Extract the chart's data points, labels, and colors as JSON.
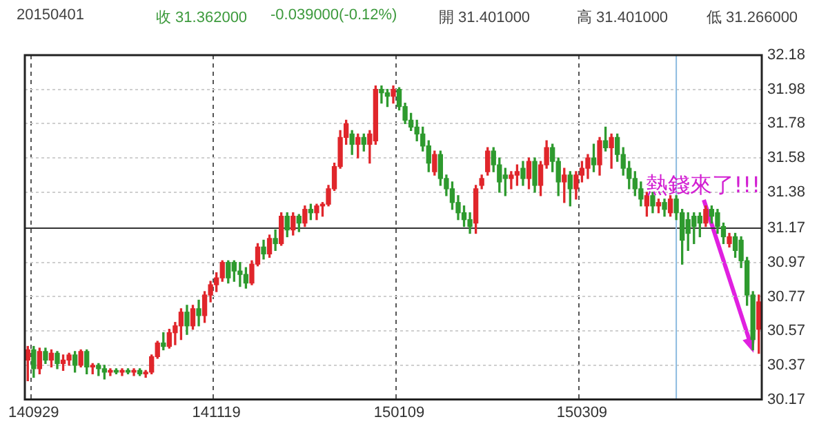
{
  "chart_data": {
    "type": "candlestick",
    "title": "20150401",
    "annotations": [
      "收 31.362000",
      "-0.039000(-0.12%)",
      "開 31.401000",
      "高 31.401000",
      "低 31.266000",
      {
        "text": "熱錢來了!!!",
        "y": 31.3
      }
    ],
    "categories": [
      null,
      "140929",
      null,
      null,
      null,
      null,
      null,
      null,
      null,
      null,
      null,
      null,
      null,
      null,
      null,
      null,
      null,
      null,
      null,
      null,
      null,
      null,
      null,
      null,
      null,
      null,
      null,
      null,
      null,
      null,
      null,
      null,
      "141119",
      null,
      null,
      null,
      null,
      null,
      null,
      null,
      null,
      null,
      null,
      null,
      null,
      null,
      null,
      null,
      null,
      null,
      null,
      null,
      null,
      null,
      null,
      null,
      null,
      null,
      null,
      null,
      null,
      null,
      null,
      "150109",
      null,
      null,
      null,
      null,
      null,
      null,
      null,
      null,
      null,
      null,
      null,
      null,
      null,
      null,
      null,
      null,
      null,
      null,
      null,
      null,
      null,
      null,
      null,
      null,
      null,
      null,
      null,
      null,
      null,
      null,
      "150309",
      null,
      null,
      null,
      null,
      null,
      null,
      null,
      null,
      null,
      null,
      null,
      null,
      null,
      null,
      null,
      null,
      null,
      null,
      null,
      null,
      null,
      null,
      null,
      null,
      null,
      null,
      null,
      null,
      null,
      null
    ],
    "ohlc": [
      [
        30.4,
        30.48,
        30.28,
        30.46
      ],
      [
        30.46,
        30.48,
        30.3,
        30.35
      ],
      [
        30.35,
        30.47,
        30.32,
        30.45
      ],
      [
        30.45,
        30.47,
        30.38,
        30.4
      ],
      [
        30.4,
        30.46,
        30.36,
        30.44
      ],
      [
        30.44,
        30.45,
        30.35,
        30.38
      ],
      [
        30.38,
        30.43,
        30.34,
        30.4
      ],
      [
        30.4,
        30.44,
        30.37,
        30.43
      ],
      [
        30.43,
        30.45,
        30.33,
        30.37
      ],
      [
        30.37,
        30.46,
        30.36,
        30.45
      ],
      [
        30.45,
        30.46,
        30.32,
        30.36
      ],
      [
        30.36,
        30.38,
        30.32,
        30.37
      ],
      [
        30.37,
        30.38,
        30.31,
        30.35
      ],
      [
        30.35,
        30.37,
        30.29,
        30.33
      ],
      [
        30.33,
        30.35,
        30.31,
        30.34
      ],
      [
        30.34,
        30.35,
        30.32,
        30.33
      ],
      [
        30.33,
        30.35,
        30.31,
        30.34
      ],
      [
        30.34,
        30.35,
        30.32,
        30.33
      ],
      [
        30.33,
        30.35,
        30.31,
        30.34
      ],
      [
        30.34,
        30.35,
        30.31,
        30.32
      ],
      [
        30.32,
        30.34,
        30.3,
        30.33
      ],
      [
        30.33,
        30.43,
        30.32,
        30.42
      ],
      [
        30.42,
        30.51,
        30.41,
        30.5
      ],
      [
        30.5,
        30.56,
        30.46,
        30.48
      ],
      [
        30.48,
        30.58,
        30.47,
        30.56
      ],
      [
        30.56,
        30.62,
        30.49,
        30.6
      ],
      [
        30.6,
        30.7,
        30.52,
        30.68
      ],
      [
        30.68,
        30.72,
        30.55,
        30.6
      ],
      [
        30.6,
        30.72,
        30.58,
        30.7
      ],
      [
        30.7,
        30.75,
        30.6,
        30.66
      ],
      [
        30.66,
        30.8,
        30.62,
        30.78
      ],
      [
        30.78,
        30.86,
        30.74,
        30.84
      ],
      [
        30.84,
        30.91,
        30.8,
        30.88
      ],
      [
        30.88,
        30.98,
        30.86,
        30.97
      ],
      [
        30.97,
        30.98,
        30.85,
        30.88
      ],
      [
        30.97,
        30.98,
        30.86,
        30.92
      ],
      [
        30.92,
        30.97,
        30.83,
        30.9
      ],
      [
        30.9,
        30.94,
        30.82,
        30.85
      ],
      [
        30.85,
        30.98,
        30.84,
        30.96
      ],
      [
        30.96,
        31.08,
        30.95,
        31.06
      ],
      [
        31.06,
        31.1,
        30.99,
        31.02
      ],
      [
        31.02,
        31.13,
        31.0,
        31.11
      ],
      [
        31.11,
        31.16,
        31.04,
        31.08
      ],
      [
        31.08,
        31.26,
        31.07,
        31.24
      ],
      [
        31.24,
        31.26,
        31.12,
        31.16
      ],
      [
        31.16,
        31.26,
        31.13,
        31.24
      ],
      [
        31.24,
        31.25,
        31.15,
        31.2
      ],
      [
        31.2,
        31.3,
        31.18,
        31.28
      ],
      [
        31.28,
        31.31,
        31.22,
        31.26
      ],
      [
        31.26,
        31.31,
        31.22,
        31.3
      ],
      [
        31.3,
        31.32,
        31.24,
        31.31
      ],
      [
        31.31,
        31.42,
        31.3,
        31.4
      ],
      [
        31.4,
        31.55,
        31.39,
        31.53
      ],
      [
        31.53,
        31.74,
        31.52,
        31.7
      ],
      [
        31.7,
        31.8,
        31.66,
        31.78
      ],
      [
        31.72,
        31.74,
        31.6,
        31.66
      ],
      [
        31.66,
        31.72,
        31.58,
        31.7
      ],
      [
        31.7,
        31.72,
        31.62,
        31.66
      ],
      [
        31.66,
        31.74,
        31.55,
        31.72
      ],
      [
        31.68,
        32.0,
        31.66,
        31.98
      ],
      [
        31.98,
        32.0,
        31.9,
        31.96
      ],
      [
        31.96,
        31.98,
        31.88,
        31.94
      ],
      [
        31.94,
        32.0,
        31.9,
        31.98
      ],
      [
        31.98,
        31.99,
        31.86,
        31.88
      ],
      [
        31.88,
        31.9,
        31.78,
        31.8
      ],
      [
        31.8,
        31.84,
        31.74,
        31.76
      ],
      [
        31.76,
        31.8,
        31.68,
        31.72
      ],
      [
        31.72,
        31.76,
        31.62,
        31.65
      ],
      [
        31.65,
        31.68,
        31.5,
        31.55
      ],
      [
        31.5,
        31.62,
        31.48,
        31.6
      ],
      [
        31.6,
        31.62,
        31.42,
        31.46
      ],
      [
        31.46,
        31.48,
        31.36,
        31.4
      ],
      [
        31.4,
        31.44,
        31.28,
        31.32
      ],
      [
        31.32,
        31.36,
        31.22,
        31.26
      ],
      [
        31.26,
        31.3,
        31.18,
        31.22
      ],
      [
        31.22,
        31.26,
        31.14,
        31.18
      ],
      [
        31.2,
        31.42,
        31.14,
        31.4
      ],
      [
        31.42,
        31.48,
        31.4,
        31.46
      ],
      [
        31.5,
        31.64,
        31.48,
        31.62
      ],
      [
        31.62,
        31.64,
        31.5,
        31.54
      ],
      [
        31.54,
        31.58,
        31.38,
        31.44
      ],
      [
        31.48,
        31.52,
        31.36,
        31.46
      ],
      [
        31.46,
        31.5,
        31.4,
        31.48
      ],
      [
        31.48,
        31.54,
        31.42,
        31.5
      ],
      [
        31.52,
        31.56,
        31.42,
        31.46
      ],
      [
        31.46,
        31.58,
        31.4,
        31.56
      ],
      [
        31.56,
        31.58,
        31.38,
        31.42
      ],
      [
        31.42,
        31.56,
        31.36,
        31.54
      ],
      [
        31.54,
        31.68,
        31.52,
        31.64
      ],
      [
        31.64,
        31.66,
        31.5,
        31.56
      ],
      [
        31.56,
        31.58,
        31.36,
        31.44
      ],
      [
        31.44,
        31.52,
        31.32,
        31.48
      ],
      [
        31.48,
        31.5,
        31.3,
        31.4
      ],
      [
        31.4,
        31.5,
        31.34,
        31.48
      ],
      [
        31.48,
        31.56,
        31.44,
        31.52
      ],
      [
        31.52,
        31.6,
        31.46,
        31.58
      ],
      [
        31.58,
        31.66,
        31.5,
        31.54
      ],
      [
        31.54,
        31.7,
        31.48,
        31.68
      ],
      [
        31.68,
        31.76,
        31.62,
        31.64
      ],
      [
        31.64,
        31.72,
        31.52,
        31.7
      ],
      [
        31.7,
        31.72,
        31.56,
        31.6
      ],
      [
        31.6,
        31.64,
        31.48,
        31.52
      ],
      [
        31.52,
        31.56,
        31.4,
        31.46
      ],
      [
        31.46,
        31.5,
        31.36,
        31.4
      ],
      [
        31.4,
        31.44,
        31.3,
        31.34
      ],
      [
        31.3,
        31.38,
        31.24,
        31.36
      ],
      [
        31.36,
        31.38,
        31.26,
        31.3
      ],
      [
        31.3,
        31.34,
        31.26,
        31.32
      ],
      [
        31.32,
        31.34,
        31.24,
        31.28
      ],
      [
        31.26,
        31.36,
        31.24,
        31.34
      ],
      [
        31.34,
        31.36,
        31.22,
        31.26
      ],
      [
        31.26,
        31.28,
        30.96,
        31.1
      ],
      [
        31.22,
        31.26,
        31.04,
        31.14
      ],
      [
        31.24,
        31.26,
        31.08,
        31.18
      ],
      [
        31.24,
        31.26,
        31.12,
        31.2
      ],
      [
        31.2,
        31.3,
        31.18,
        31.28
      ],
      [
        31.28,
        31.3,
        31.2,
        31.24
      ],
      [
        31.26,
        31.28,
        31.14,
        31.18
      ],
      [
        31.18,
        31.2,
        31.08,
        31.12
      ],
      [
        31.08,
        31.14,
        31.06,
        31.12
      ],
      [
        31.12,
        31.14,
        31.0,
        31.04
      ],
      [
        31.1,
        31.12,
        30.94,
        30.98
      ],
      [
        30.98,
        31.0,
        30.72,
        30.78
      ],
      [
        30.78,
        30.8,
        30.46,
        30.52
      ],
      [
        30.58,
        30.78,
        30.44,
        30.74
      ]
    ],
    "colors": [
      "#e0262b",
      "#2e9a2e",
      "#e0262b",
      "#2e9a2e",
      "#e0262b",
      "#2e9a2e",
      "#e0262b",
      "#e0262b",
      "#2e9a2e",
      "#e0262b",
      "#2e9a2e",
      "#e0262b",
      "#2e9a2e",
      "#2e9a2e",
      "#e0262b",
      "#2e9a2e",
      "#e0262b",
      "#2e9a2e",
      "#e0262b",
      "#2e9a2e",
      "#e0262b",
      "#e0262b",
      "#e0262b",
      "#2e9a2e",
      "#e0262b",
      "#e0262b",
      "#e0262b",
      "#2e9a2e",
      "#e0262b",
      "#2e9a2e",
      "#e0262b",
      "#e0262b",
      "#e0262b",
      "#e0262b",
      "#2e9a2e",
      "#2e9a2e",
      "#2e9a2e",
      "#2e9a2e",
      "#e0262b",
      "#e0262b",
      "#2e9a2e",
      "#e0262b",
      "#2e9a2e",
      "#e0262b",
      "#2e9a2e",
      "#e0262b",
      "#2e9a2e",
      "#e0262b",
      "#2e9a2e",
      "#e0262b",
      "#e0262b",
      "#e0262b",
      "#e0262b",
      "#e0262b",
      "#e0262b",
      "#2e9a2e",
      "#e0262b",
      "#2e9a2e",
      "#e0262b",
      "#e0262b",
      "#2e9a2e",
      "#2e9a2e",
      "#e0262b",
      "#2e9a2e",
      "#2e9a2e",
      "#2e9a2e",
      "#2e9a2e",
      "#2e9a2e",
      "#2e9a2e",
      "#e0262b",
      "#2e9a2e",
      "#2e9a2e",
      "#2e9a2e",
      "#2e9a2e",
      "#2e9a2e",
      "#2e9a2e",
      "#e0262b",
      "#e0262b",
      "#e0262b",
      "#2e9a2e",
      "#2e9a2e",
      "#2e9a2e",
      "#e0262b",
      "#e0262b",
      "#2e9a2e",
      "#e0262b",
      "#2e9a2e",
      "#e0262b",
      "#e0262b",
      "#2e9a2e",
      "#2e9a2e",
      "#e0262b",
      "#2e9a2e",
      "#e0262b",
      "#e0262b",
      "#e0262b",
      "#2e9a2e",
      "#e0262b",
      "#2e9a2e",
      "#e0262b",
      "#2e9a2e",
      "#2e9a2e",
      "#2e9a2e",
      "#2e9a2e",
      "#2e9a2e",
      "#e0262b",
      "#2e9a2e",
      "#e0262b",
      "#2e9a2e",
      "#e0262b",
      "#2e9a2e",
      "#2e9a2e",
      "#2e9a2e",
      "#2e9a2e",
      "#2e9a2e",
      "#e0262b",
      "#2e9a2e",
      "#2e9a2e",
      "#2e9a2e",
      "#e0262b",
      "#2e9a2e",
      "#2e9a2e",
      "#2e9a2e",
      "#2e9a2e",
      "#e0262b"
    ],
    "ylim": [
      30.17,
      32.18
    ],
    "yticks": [
      30.17,
      30.37,
      30.57,
      30.77,
      30.97,
      31.17,
      31.38,
      31.58,
      31.78,
      31.98,
      32.18
    ],
    "grid": true,
    "ref_lines": [
      {
        "axis": "y",
        "value": 31.17,
        "color": "#333333"
      }
    ]
  }
}
